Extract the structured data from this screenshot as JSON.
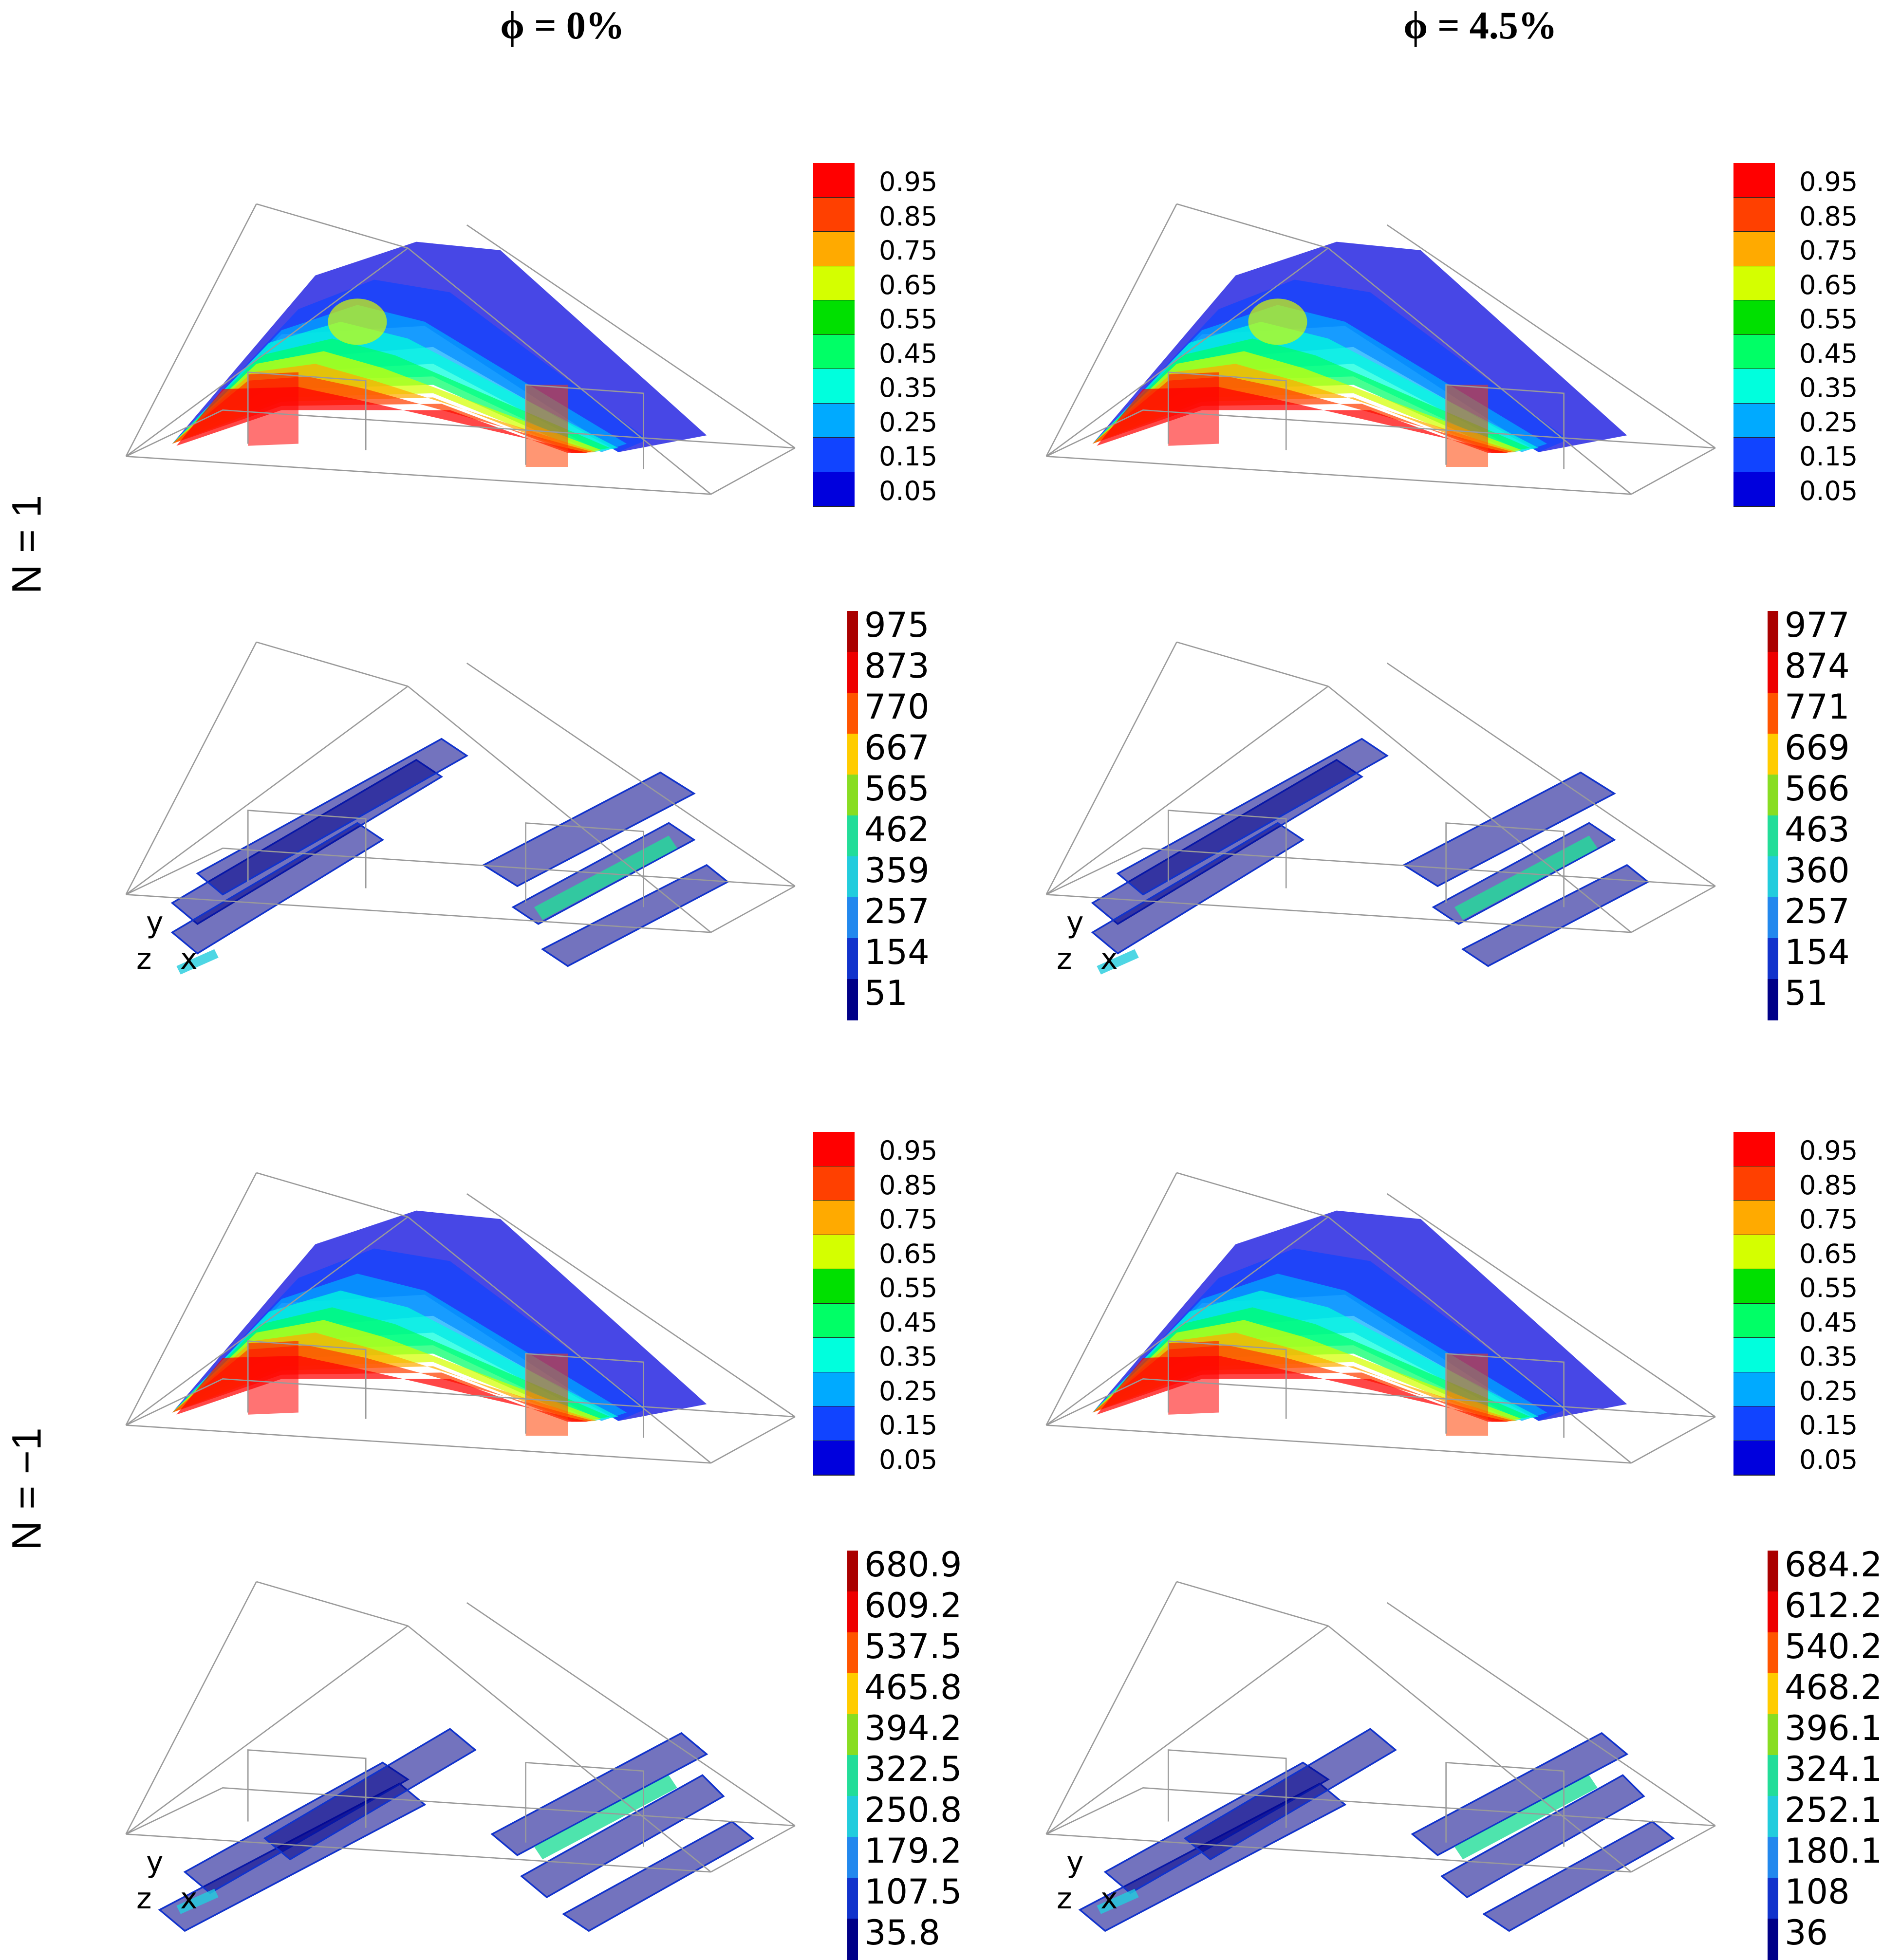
{
  "columns": [
    {
      "label": "ϕ = 0%"
    },
    {
      "label": "ϕ = 4.5%"
    }
  ],
  "rows": [
    {
      "label": "N = 1"
    },
    {
      "label": "N = −1"
    }
  ],
  "panels": {
    "n1_phi0_vf": {
      "legend": [
        "0.95",
        "0.85",
        "0.75",
        "0.65",
        "0.55",
        "0.45",
        "0.35",
        "0.25",
        "0.15",
        "0.05"
      ]
    },
    "n1_phi45_vf": {
      "legend": [
        "0.95",
        "0.85",
        "0.75",
        "0.65",
        "0.55",
        "0.45",
        "0.35",
        "0.25",
        "0.15",
        "0.05"
      ]
    },
    "n1_phi0_tp": {
      "legend": [
        "975",
        "873",
        "770",
        "667",
        "565",
        "462",
        "359",
        "257",
        "154",
        "51"
      ]
    },
    "n1_phi45_tp": {
      "legend": [
        "977",
        "874",
        "771",
        "669",
        "566",
        "463",
        "360",
        "257",
        "154",
        "51"
      ]
    },
    "nm1_phi0_vf": {
      "legend": [
        "0.95",
        "0.85",
        "0.75",
        "0.65",
        "0.55",
        "0.45",
        "0.35",
        "0.25",
        "0.15",
        "0.05"
      ]
    },
    "nm1_phi45_vf": {
      "legend": [
        "0.95",
        "0.85",
        "0.75",
        "0.65",
        "0.55",
        "0.45",
        "0.35",
        "0.25",
        "0.15",
        "0.05"
      ]
    },
    "nm1_phi0_tp": {
      "legend": [
        "680.9",
        "609.2",
        "537.5",
        "465.8",
        "394.2",
        "322.5",
        "250.8",
        "179.2",
        "107.5",
        "35.8"
      ]
    },
    "nm1_phi45_tp": {
      "legend": [
        "684.2",
        "612.2",
        "540.2",
        "468.2",
        "396.1",
        "324.1",
        "252.1",
        "180.1",
        "108",
        "36"
      ]
    }
  },
  "axes": {
    "y": "y",
    "z": "z",
    "x": "x"
  },
  "colors": {
    "vf_scale": [
      "#ff0000",
      "#ff4000",
      "#ffaa00",
      "#d4ff00",
      "#00e000",
      "#00ff66",
      "#00ffdd",
      "#00aaff",
      "#1144ff",
      "#0000dd"
    ],
    "tp_scale": [
      "#aa0000",
      "#ee0000",
      "#ff5500",
      "#ffcc00",
      "#88dd22",
      "#22dd99",
      "#22ccdd",
      "#2288ee",
      "#1133cc",
      "#000088"
    ]
  }
}
